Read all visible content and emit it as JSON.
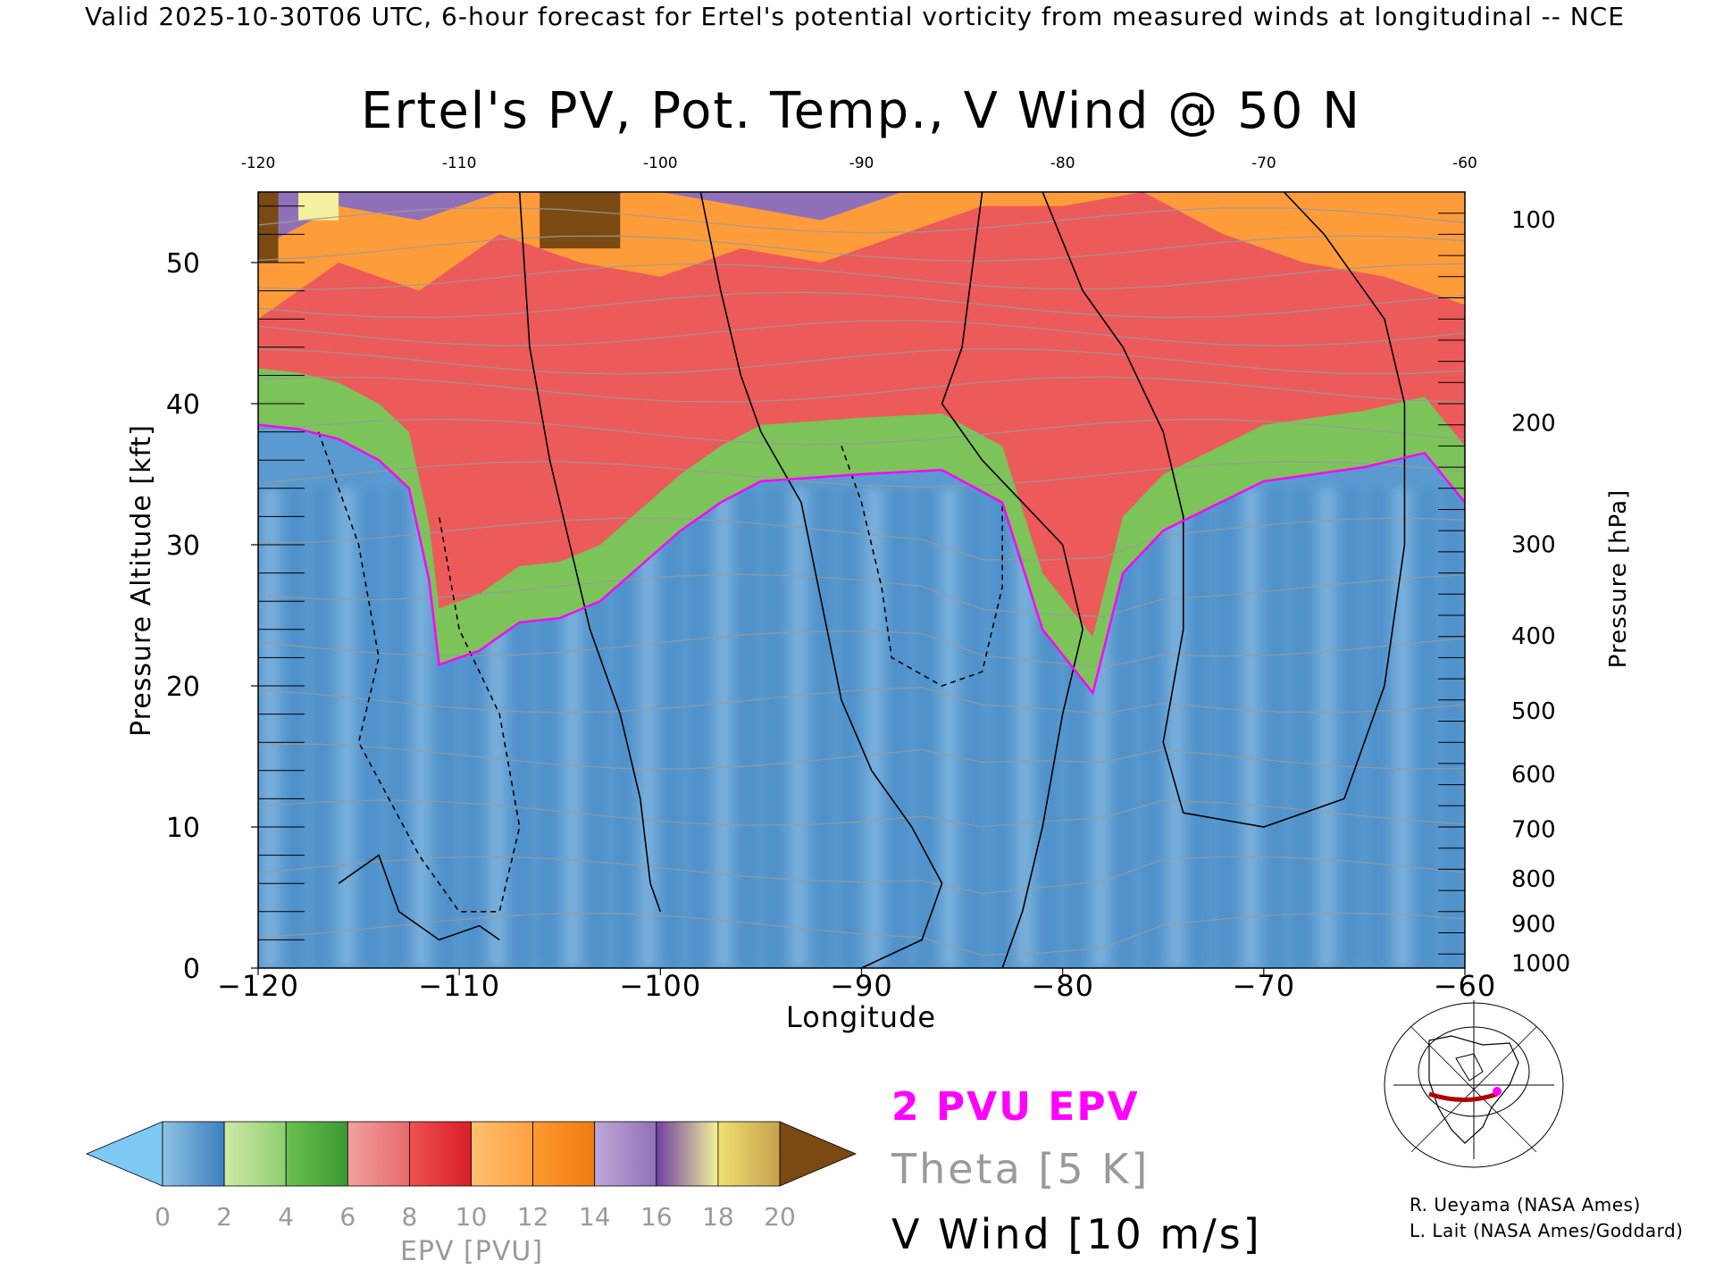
{
  "header": {
    "valid_line": "Valid 2025-10-30T06 UTC, 6-hour forecast for Ertel's potential vorticity from measured winds at longitudinal -- NCE"
  },
  "chart_data": {
    "type": "heatmap",
    "title": "Ertel's PV, Pot. Temp., V Wind @ 50 N",
    "xlabel": "Longitude",
    "ylabel_left": "Pressure Altitude [kft]",
    "ylabel_right": "Pressure [hPa]",
    "xlim": [
      -120,
      -60
    ],
    "ylim": [
      0,
      55
    ],
    "x_ticks": [
      -120,
      -110,
      -100,
      -90,
      -80,
      -70,
      -60
    ],
    "x_tick_labels": [
      "−120",
      "−110",
      "−100",
      "−90",
      "−80",
      "−70",
      "−60"
    ],
    "x_ticks_top": [
      -120,
      -110,
      -100,
      -90,
      -80,
      -70,
      -60
    ],
    "x_tick_labels_top": [
      "-120",
      "-110",
      "-100",
      "-90",
      "-80",
      "-70",
      "-60"
    ],
    "y_ticks_left": [
      0,
      10,
      20,
      30,
      40,
      50
    ],
    "y_tick_labels_left": [
      "0",
      "10",
      "20",
      "30",
      "40",
      "50"
    ],
    "pressure_ticks": [
      {
        "label": "100",
        "kft": 53.1
      },
      {
        "label": "200",
        "kft": 38.7
      },
      {
        "label": "300",
        "kft": 30.1
      },
      {
        "label": "400",
        "kft": 23.6
      },
      {
        "label": "500",
        "kft": 18.3
      },
      {
        "label": "600",
        "kft": 13.8
      },
      {
        "label": "700",
        "kft": 9.9
      },
      {
        "label": "800",
        "kft": 6.4
      },
      {
        "label": "900",
        "kft": 3.2
      },
      {
        "label": "1000",
        "kft": 0.4
      }
    ],
    "grid": false,
    "pv_2pvu_boundary": [
      [
        -120,
        38.5
      ],
      [
        -118,
        38.2
      ],
      [
        -116,
        37.5
      ],
      [
        -114,
        36.0
      ],
      [
        -112.5,
        34.0
      ],
      [
        -111.5,
        27.5
      ],
      [
        -111,
        21.5
      ],
      [
        -109,
        22.5
      ],
      [
        -107,
        24.5
      ],
      [
        -105,
        24.8
      ],
      [
        -103,
        26.0
      ],
      [
        -101,
        28.5
      ],
      [
        -99,
        31.0
      ],
      [
        -97,
        33.0
      ],
      [
        -95,
        34.5
      ],
      [
        -90,
        35.0
      ],
      [
        -86,
        35.3
      ],
      [
        -83,
        33.0
      ],
      [
        -81,
        24.0
      ],
      [
        -78.5,
        19.5
      ],
      [
        -77,
        28.0
      ],
      [
        -75,
        31.0
      ],
      [
        -70,
        34.5
      ],
      [
        -65,
        35.5
      ],
      [
        -62,
        36.5
      ],
      [
        -60,
        33.0
      ]
    ],
    "colorbar": {
      "label": "EPV [PVU]",
      "ticks": [
        "0",
        "2",
        "4",
        "6",
        "8",
        "10",
        "12",
        "14",
        "16",
        "18",
        "20"
      ],
      "extend": "both",
      "colors": {
        "under": "#7ec8f4",
        "seg_0_2": [
          "#8ec3e4",
          "#3d7fbd"
        ],
        "seg_2_4": [
          "#cfe9a8",
          "#8fce6f"
        ],
        "seg_4_6": [
          "#6bbf4f",
          "#3a9a32"
        ],
        "seg_6_8": [
          "#f2a0a0",
          "#e86a6a"
        ],
        "seg_8_10": [
          "#ee5050",
          "#d81e28"
        ],
        "seg_10_12": [
          "#ffc070",
          "#ffa040"
        ],
        "seg_12_14": [
          "#ff9a30",
          "#f07a10"
        ],
        "seg_14_16": [
          "#c0a8d8",
          "#9070b8"
        ],
        "seg_16_18": [
          "#7040a0",
          "#f4f29a"
        ],
        "seg_18_20": [
          "#f0e070",
          "#c8a050"
        ],
        "over": "#7a4a12"
      }
    }
  },
  "legend": {
    "pv_label": "2 PVU EPV",
    "theta_label": "Theta [5 K]",
    "wind_label": "V Wind [10 m/s]",
    "pv_color": "#ff00ff",
    "theta_color": "#9a9a9a",
    "wind_color": "#000000"
  },
  "credits": {
    "line1": "R. Ueyama (NASA Ames)",
    "line2": "L. Lait (NASA Ames/Goddard)"
  },
  "colors": {
    "troposphere": "#5a9ad0",
    "trop_light": "#8fc0e4",
    "green_band": "#7cc35a",
    "red_region": "#ec5a5a",
    "orange_region": "#ff9c3a",
    "purple_region": "#9070b8",
    "brown_region": "#7a4a12",
    "cream_region": "#f4f0a0"
  }
}
